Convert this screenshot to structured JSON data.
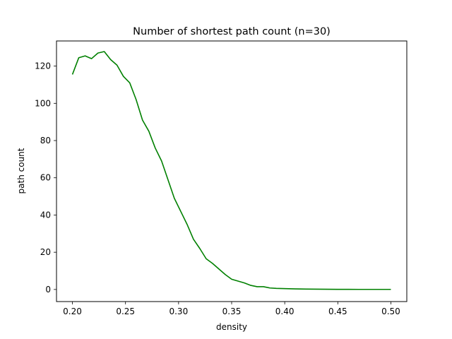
{
  "chart_data": {
    "type": "line",
    "title": "Number of shortest path count (n=30)",
    "xlabel": "density",
    "ylabel": "path count",
    "xlim": [
      0.185,
      0.515
    ],
    "ylim": [
      -6.5,
      133.5
    ],
    "xticks": [
      0.2,
      0.25,
      0.3,
      0.35,
      0.4,
      0.45,
      0.5
    ],
    "xtick_labels": [
      "0.20",
      "0.25",
      "0.30",
      "0.35",
      "0.40",
      "0.45",
      "0.50"
    ],
    "yticks": [
      0,
      20,
      40,
      60,
      80,
      100,
      120
    ],
    "ytick_labels": [
      "0",
      "20",
      "40",
      "60",
      "80",
      "100",
      "120"
    ],
    "grid": false,
    "line_color": "#008000",
    "series": [
      {
        "x": [
          0.2,
          0.206,
          0.212,
          0.218,
          0.224,
          0.23,
          0.236,
          0.242,
          0.248,
          0.254,
          0.26,
          0.266,
          0.272,
          0.278,
          0.284,
          0.29,
          0.296,
          0.302,
          0.308,
          0.314,
          0.32,
          0.326,
          0.332,
          0.338,
          0.344,
          0.35,
          0.356,
          0.362,
          0.368,
          0.374,
          0.38,
          0.386,
          0.392,
          0.398,
          0.404,
          0.41,
          0.42,
          0.43,
          0.44,
          0.45,
          0.46,
          0.47,
          0.48,
          0.49,
          0.5
        ],
        "y": [
          115.5,
          124.5,
          125.5,
          124.0,
          127.0,
          127.8,
          123.5,
          120.5,
          114.5,
          111.0,
          102.0,
          91.0,
          85.0,
          76.0,
          69.0,
          59.0,
          49.0,
          42.0,
          35.0,
          27.0,
          22.0,
          16.5,
          14.0,
          11.0,
          8.0,
          5.5,
          4.5,
          3.5,
          2.2,
          1.5,
          1.5,
          0.8,
          0.6,
          0.5,
          0.4,
          0.3,
          0.2,
          0.15,
          0.1,
          0.08,
          0.06,
          0.05,
          0.05,
          0.05,
          0.05
        ]
      }
    ]
  }
}
